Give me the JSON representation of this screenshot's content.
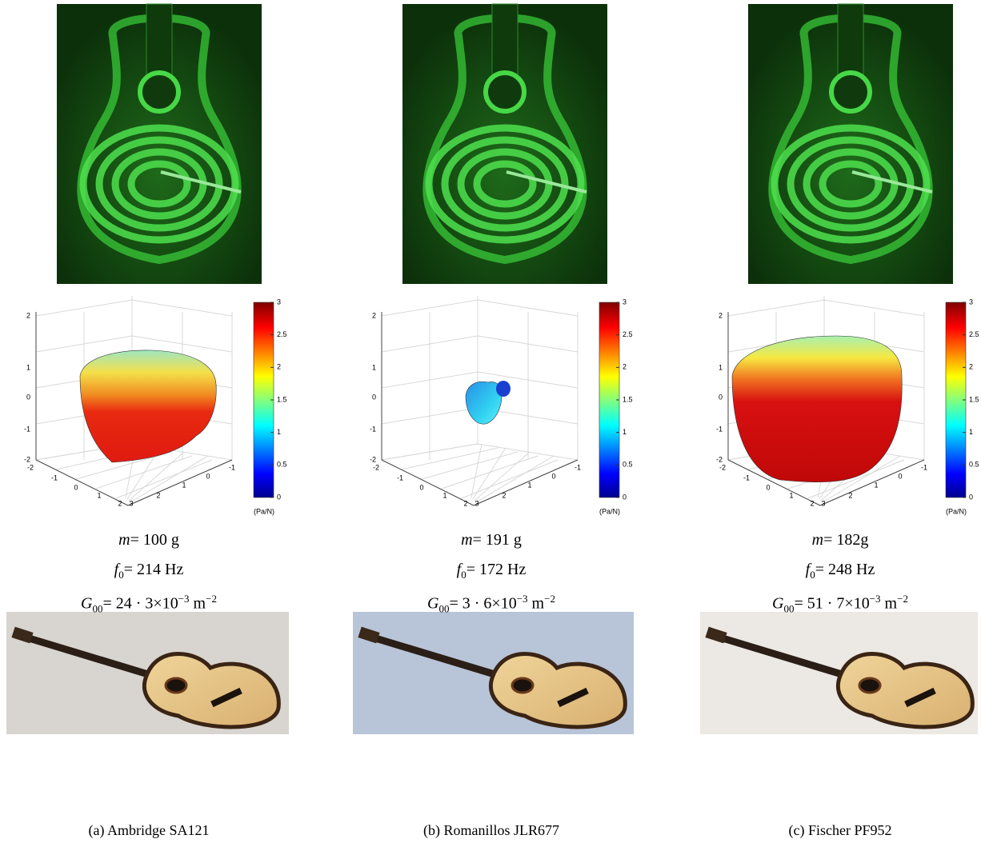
{
  "panels": [
    {
      "label": "(a) Ambridge SA121",
      "mass": {
        "symbol": "m",
        "value": "= 100 g"
      },
      "frequency": {
        "symbol": "f",
        "subscript": "0",
        "value": "= 214 Hz"
      },
      "admittance": {
        "symbol": "G",
        "subscript": "00",
        "value": "= 24 · 3×10",
        "exponent": "−3",
        "unit": "m",
        "unit_exponent": "−2"
      }
    },
    {
      "label": "(b) Romanillos JLR677",
      "mass": {
        "symbol": "m",
        "value": "= 191 g"
      },
      "frequency": {
        "symbol": "f",
        "subscript": "0",
        "value": "= 172 Hz"
      },
      "admittance": {
        "symbol": "G",
        "subscript": "00",
        "value": "= 3 · 6×10",
        "exponent": "−3",
        "unit": "m",
        "unit_exponent": "−2"
      }
    },
    {
      "label": "(c) Fischer PF952",
      "mass": {
        "symbol": "m",
        "value": "= 182g"
      },
      "frequency": {
        "symbol": "f",
        "subscript": "0",
        "value": "= 248 Hz"
      },
      "admittance": {
        "symbol": "G",
        "subscript": "00",
        "value": "= 51 · 7×10",
        "exponent": "−3",
        "unit": "m",
        "unit_exponent": "−2"
      }
    }
  ],
  "plot_axes": {
    "z_ticks": [
      "2",
      "1",
      "0",
      "-1",
      "-2"
    ],
    "x_ticks": [
      "-2",
      "-1",
      "0",
      "1",
      "2"
    ],
    "y_ticks": [
      "3",
      "2",
      "1",
      "0",
      "-1"
    ],
    "colorbar_ticks": [
      "3",
      "2.5",
      "2",
      "1.5",
      "1",
      "0.5",
      "0"
    ],
    "colorbar_unit": "(Pa/N)"
  }
}
